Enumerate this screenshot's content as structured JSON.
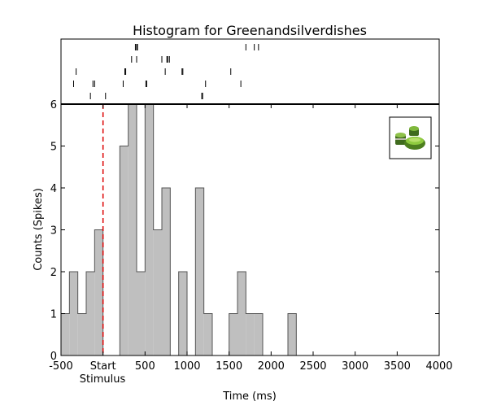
{
  "chart_data": {
    "type": "bar",
    "title": "Histogram for Greenandsilverdishes",
    "xlabel": "Time (ms)",
    "ylabel": "Counts (Spikes)",
    "xlim": [
      -500,
      4000
    ],
    "ylim": [
      0,
      6
    ],
    "x_ticks": [
      {
        "value": -500,
        "label": "-500"
      },
      {
        "value": 0,
        "label": "Start"
      },
      {
        "value": 500,
        "label": "500"
      },
      {
        "value": 1000,
        "label": "1000"
      },
      {
        "value": 1500,
        "label": "1500"
      },
      {
        "value": 2000,
        "label": "2000"
      },
      {
        "value": 2500,
        "label": "2500"
      },
      {
        "value": 3000,
        "label": "3000"
      },
      {
        "value": 3500,
        "label": "3500"
      },
      {
        "value": 4000,
        "label": "4000"
      }
    ],
    "x_sublabel": "Stimulus",
    "y_ticks": [
      0,
      1,
      2,
      3,
      4,
      5,
      6
    ],
    "bin_width": 100,
    "bins": [
      {
        "start": -500,
        "count": 1
      },
      {
        "start": -400,
        "count": 2
      },
      {
        "start": -300,
        "count": 1
      },
      {
        "start": -200,
        "count": 2
      },
      {
        "start": -100,
        "count": 3
      },
      {
        "start": 0,
        "count": 0
      },
      {
        "start": 100,
        "count": 0
      },
      {
        "start": 200,
        "count": 5
      },
      {
        "start": 300,
        "count": 6
      },
      {
        "start": 400,
        "count": 2
      },
      {
        "start": 500,
        "count": 6
      },
      {
        "start": 600,
        "count": 3
      },
      {
        "start": 700,
        "count": 4
      },
      {
        "start": 800,
        "count": 0
      },
      {
        "start": 900,
        "count": 2
      },
      {
        "start": 1000,
        "count": 0
      },
      {
        "start": 1100,
        "count": 4
      },
      {
        "start": 1200,
        "count": 1
      },
      {
        "start": 1300,
        "count": 0
      },
      {
        "start": 1400,
        "count": 0
      },
      {
        "start": 1500,
        "count": 1
      },
      {
        "start": 1600,
        "count": 2
      },
      {
        "start": 1700,
        "count": 1
      },
      {
        "start": 1800,
        "count": 1
      },
      {
        "start": 1900,
        "count": 0
      },
      {
        "start": 2000,
        "count": 0
      },
      {
        "start": 2100,
        "count": 0
      },
      {
        "start": 2200,
        "count": 1
      }
    ],
    "stimulus_onset": 0,
    "raster_trials": [
      [
        -150,
        30,
        1175,
        1185
      ],
      [
        -350,
        -120,
        -100,
        240,
        510,
        520,
        1220,
        1640
      ],
      [
        -320,
        260,
        270,
        740,
        940,
        950,
        1520
      ],
      [
        340,
        400,
        700,
        760,
        770,
        790
      ],
      [
        385,
        400,
        410,
        1700,
        1800,
        1850
      ]
    ],
    "legend": "image thumbnail of green and silver dishes (top-right)",
    "colors": {
      "bar_fill": "#bfbfbf",
      "bar_edge": "#555555",
      "stimulus_line": "#dd0000",
      "axes": "#000000"
    }
  }
}
